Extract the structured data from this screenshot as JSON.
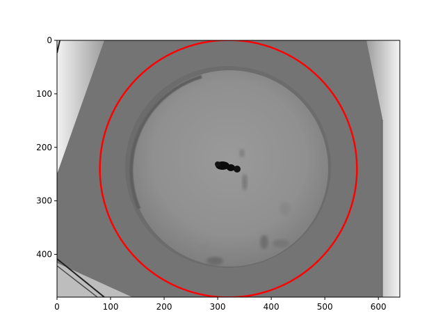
{
  "figure": {
    "x_ticks": [
      "0",
      "100",
      "200",
      "300",
      "400",
      "500",
      "600"
    ],
    "y_ticks": [
      "0",
      "100",
      "200",
      "300",
      "400"
    ],
    "x_range": [
      0,
      640
    ],
    "y_range": [
      480,
      0
    ],
    "overlay_color": "#ff0000",
    "overlay_shape": "circle",
    "overlay_circle": {
      "cx": 320,
      "cy": 240,
      "r": 240
    }
  },
  "colors": {
    "dish_floor": "#8e8e8e",
    "dish_rim": "#727272",
    "bright_edge": "#e6e6e6",
    "subject": "#0b0b0b"
  }
}
